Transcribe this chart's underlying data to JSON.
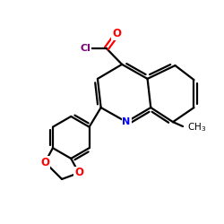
{
  "bg_color": "#ffffff",
  "bond_color": "#000000",
  "N_color": "#0000ff",
  "O_color": "#ff0000",
  "Cl_color": "#800080",
  "figsize": [
    2.5,
    2.5
  ],
  "dpi": 100,
  "xlim": [
    0,
    10
  ],
  "ylim": [
    0,
    10
  ]
}
